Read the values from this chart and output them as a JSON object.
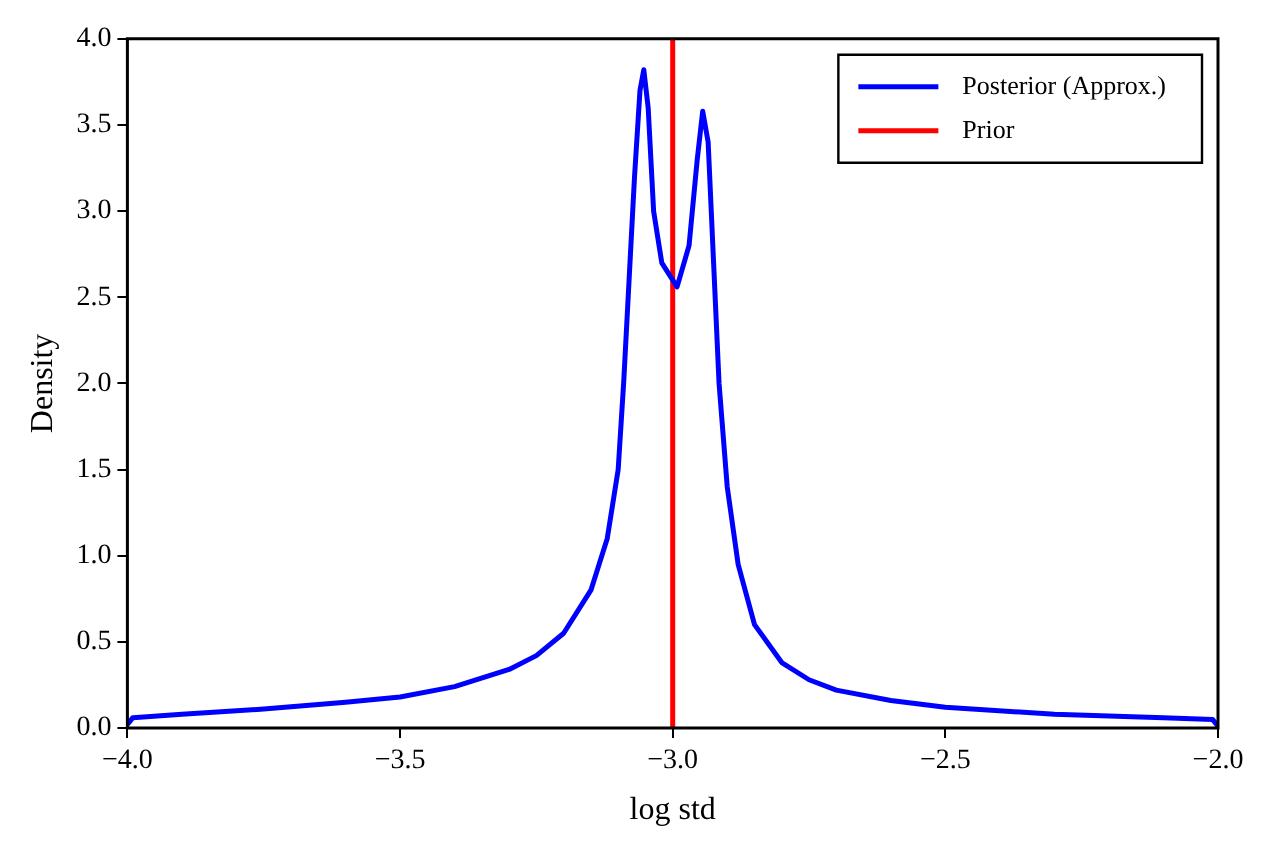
{
  "chart_data": {
    "type": "line",
    "xlabel": "log std",
    "ylabel": "Density",
    "xlim": [
      -4.0,
      -2.0
    ],
    "xticks": [
      {
        "value": -4,
        "label": "−4.0"
      },
      {
        "value": -3.5,
        "label": "−3.5"
      },
      {
        "value": -3,
        "label": "−3.0"
      },
      {
        "value": -2.5,
        "label": "−2.5"
      },
      {
        "value": -2,
        "label": "−2.0"
      }
    ],
    "ylim": [
      0,
      4.0
    ],
    "yticks": [
      {
        "value": 0,
        "label": "0.0"
      },
      {
        "value": 0.5,
        "label": "0.5"
      },
      {
        "value": 1,
        "label": "1.0"
      },
      {
        "value": 1.5,
        "label": "1.5"
      },
      {
        "value": 2,
        "label": "2.0"
      },
      {
        "value": 2.5,
        "label": "2.5"
      },
      {
        "value": 3,
        "label": "3.0"
      },
      {
        "value": 3.5,
        "label": "3.5"
      },
      {
        "value": 4,
        "label": "4.0"
      }
    ],
    "grid": false,
    "legend": "top right",
    "marker": "none",
    "line_style": "solid",
    "series": [
      {
        "name": "Posterior (Approx.)",
        "color": "#0000ff",
        "x": [
          -4.0,
          -3.99,
          -3.9,
          -3.75,
          -3.6,
          -3.5,
          -3.4,
          -3.3,
          -3.25,
          -3.2,
          -3.15,
          -3.12,
          -3.1,
          -3.09,
          -3.08,
          -3.07,
          -3.06,
          -3.053,
          -3.045,
          -3.035,
          -3.02,
          -2.992,
          -2.97,
          -2.955,
          -2.945,
          -2.935,
          -2.925,
          -2.915,
          -2.9,
          -2.88,
          -2.85,
          -2.8,
          -2.75,
          -2.7,
          -2.6,
          -2.5,
          -2.3,
          -2.1,
          -2.01,
          -2.0
        ],
        "values": [
          0.02,
          0.06,
          0.08,
          0.11,
          0.15,
          0.18,
          0.24,
          0.34,
          0.42,
          0.55,
          0.8,
          1.1,
          1.5,
          2.0,
          2.6,
          3.2,
          3.7,
          3.82,
          3.6,
          3.0,
          2.7,
          2.56,
          2.8,
          3.3,
          3.58,
          3.4,
          2.7,
          2.0,
          1.4,
          0.95,
          0.6,
          0.38,
          0.28,
          0.22,
          0.16,
          0.12,
          0.08,
          0.06,
          0.05,
          0.01
        ]
      },
      {
        "name": "Prior",
        "color": "#ff0000",
        "x": [
          -3.0,
          -3.0
        ],
        "values": [
          0,
          4.0
        ]
      }
    ]
  }
}
